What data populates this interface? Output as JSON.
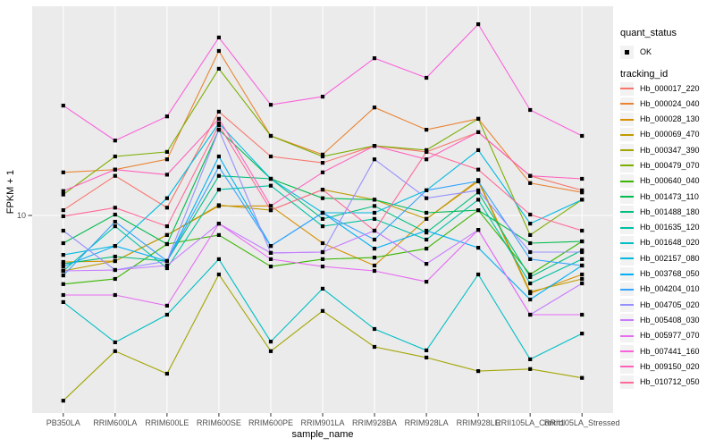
{
  "figure": {
    "y_axis": {
      "title": "FPKM + 1",
      "tick_labels": [
        "10"
      ]
    },
    "x_axis": {
      "title": "sample_name"
    },
    "legend": {
      "quant_status_title": "quant_status",
      "quant_status_items": [
        {
          "label": "OK"
        }
      ],
      "tracking_id_title": "tracking_id"
    },
    "colors": {
      "panel_background": "#EBEBEB",
      "gridline": "#FFFFFF",
      "tick_mark": "#333333",
      "tick_text": "#4D4D4D",
      "point": "#000000",
      "legend_key_background": "#F2F2F2"
    }
  },
  "chart_data": {
    "type": "line",
    "title": "",
    "xlabel": "sample_name",
    "ylabel": "FPKM + 1",
    "y_scale": "log10",
    "y_tick_values": [
      10
    ],
    "grid": true,
    "legend_position": "right",
    "marker": "filled-black-square",
    "categories": [
      "PB350LA",
      "RRIM600LA",
      "RRIM600LE",
      "RRIM600SE",
      "RRIM600PE",
      "RRIM901LA",
      "RRIM928BA",
      "RRIM928LA",
      "RRIM928LE",
      "RRII105LA_Control",
      "RRII105LA_Stressed"
    ],
    "series": [
      {
        "name": "Hb_000017_220",
        "color": "#F8766D",
        "quant_status": "OK",
        "values": [
          10.6,
          15.5,
          10.9,
          31.5,
          19.2,
          17.9,
          21.6,
          20.2,
          25.1,
          15.5,
          13.2
        ]
      },
      {
        "name": "Hb_000024_040",
        "color": "#EA8331",
        "quant_status": "OK",
        "values": [
          16.1,
          16.6,
          18.6,
          61.6,
          24.1,
          19.6,
          33.0,
          25.8,
          29.1,
          14.3,
          12.9
        ]
      },
      {
        "name": "Hb_000028_130",
        "color": "#D89000",
        "quant_status": "OK",
        "values": [
          5.98,
          6.04,
          8.05,
          11.1,
          11.1,
          7.36,
          5.75,
          9.62,
          14.6,
          4.23,
          5.21
        ]
      },
      {
        "name": "Hb_000069_470",
        "color": "#C09B00",
        "quant_status": "OK",
        "values": [
          5.42,
          6.04,
          8.05,
          11.2,
          10.6,
          13.3,
          11.9,
          9.62,
          14.8,
          4.3,
          4.96
        ]
      },
      {
        "name": "Hb_000347_390",
        "color": "#A3A500",
        "quant_status": "OK",
        "values": [
          1.29,
          2.23,
          1.74,
          5.21,
          2.23,
          3.48,
          2.34,
          2.08,
          1.79,
          1.83,
          1.66
        ]
      },
      {
        "name": "Hb_000479_070",
        "color": "#7CAE00",
        "quant_status": "OK",
        "values": [
          12.6,
          19.2,
          20.2,
          50.6,
          24.1,
          19.2,
          21.6,
          20.6,
          29.1,
          8.05,
          11.9
        ]
      },
      {
        "name": "Hb_000640_040",
        "color": "#39B600",
        "quant_status": "OK",
        "values": [
          4.68,
          4.96,
          7.29,
          8.05,
          5.69,
          6.17,
          6.28,
          6.93,
          10.6,
          5.21,
          7.51
        ]
      },
      {
        "name": "Hb_001473_110",
        "color": "#00BB4E",
        "quant_status": "OK",
        "values": [
          7.36,
          10.1,
          7.29,
          25.8,
          15.0,
          12.1,
          11.9,
          10.3,
          10.6,
          7.36,
          7.51
        ]
      },
      {
        "name": "Hb_001488_180",
        "color": "#00BF7D",
        "quant_status": "OK",
        "values": [
          5.86,
          6.35,
          6.04,
          15.5,
          15.0,
          9.62,
          11.1,
          8.28,
          12.9,
          5.06,
          6.81
        ]
      },
      {
        "name": "Hb_001635_120",
        "color": "#00C1A3",
        "quant_status": "OK",
        "values": [
          5.42,
          8.87,
          5.58,
          13.3,
          13.9,
          8.87,
          9.62,
          7.66,
          11.9,
          4.72,
          6.17
        ]
      },
      {
        "name": "Hb_001648_020",
        "color": "#00BFC4",
        "quant_status": "OK",
        "values": [
          3.84,
          2.46,
          3.34,
          6.17,
          2.48,
          4.45,
          2.85,
          2.25,
          5.21,
          2.04,
          2.71
        ]
      },
      {
        "name": "Hb_002157_080",
        "color": "#00BAE0",
        "quant_status": "OK",
        "values": [
          6.47,
          7.14,
          12.1,
          27.7,
          15.0,
          10.3,
          10.3,
          13.2,
          20.6,
          9.14,
          11.9
        ]
      },
      {
        "name": "Hb_003768_050",
        "color": "#00B0F6",
        "quant_status": "OK",
        "values": [
          5.69,
          7.14,
          6.04,
          19.2,
          7.14,
          10.3,
          6.93,
          8.45,
          7.0,
          3.95,
          5.75
        ]
      },
      {
        "name": "Hb_004204_010",
        "color": "#35A2FF",
        "quant_status": "OK",
        "values": [
          5.15,
          9.33,
          6.04,
          17.1,
          7.14,
          10.3,
          7.66,
          13.2,
          14.6,
          6.17,
          5.75
        ]
      },
      {
        "name": "Hb_004705_020",
        "color": "#9590FF",
        "quant_status": "OK",
        "values": [
          8.45,
          5.47,
          6.04,
          25.8,
          6.61,
          6.67,
          18.6,
          12.1,
          13.2,
          6.67,
          6.67
        ]
      },
      {
        "name": "Hb_005408_030",
        "color": "#C77CFF",
        "quant_status": "OK",
        "values": [
          5.42,
          5.47,
          5.75,
          9.14,
          6.61,
          6.67,
          8.45,
          5.86,
          8.53,
          3.34,
          4.72
        ]
      },
      {
        "name": "Hb_005977_070",
        "color": "#E76BF3",
        "quant_status": "OK",
        "values": [
          4.15,
          4.15,
          3.69,
          9.14,
          6.17,
          5.69,
          5.42,
          4.81,
          8.53,
          3.34,
          3.34
        ]
      },
      {
        "name": "Hb_007441_160",
        "color": "#FA62DB",
        "quant_status": "OK",
        "values": [
          33.7,
          22.9,
          29.9,
          71.5,
          34.0,
          37.2,
          56.9,
          45.8,
          82.8,
          32.1,
          24.1
        ]
      },
      {
        "name": "Hb_009150_020",
        "color": "#FF62BC",
        "quant_status": "OK",
        "values": [
          13.1,
          16.6,
          15.7,
          29.1,
          11.1,
          16.1,
          21.6,
          18.6,
          25.1,
          15.5,
          15.0
        ]
      },
      {
        "name": "Hb_010712_050",
        "color": "#FF6A98",
        "quant_status": "OK",
        "values": [
          9.91,
          10.9,
          8.87,
          27.1,
          10.6,
          13.3,
          8.45,
          20.2,
          16.6,
          10.1,
          8.45
        ]
      }
    ]
  }
}
